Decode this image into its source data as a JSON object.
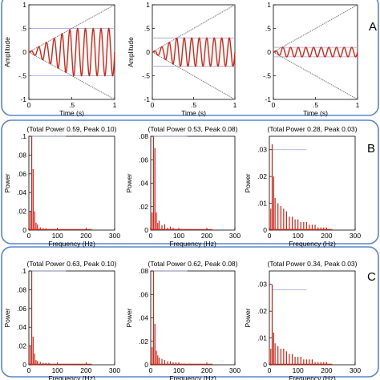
{
  "colors": {
    "signal": "#e02010",
    "envelope": "#777777",
    "reference_line": "#9aa4d8",
    "panel_border": "#5a86c8",
    "axis": "#000000"
  },
  "panels": [
    {
      "label": "A"
    },
    {
      "label": "B"
    },
    {
      "label": "C"
    }
  ],
  "chart_data": [
    {
      "panel": "A",
      "type": "line",
      "xlabel": "Time (s)",
      "ylabel": "Amplitude",
      "xlim": [
        0,
        1
      ],
      "ylim": [
        -1,
        1
      ],
      "xticks": [
        0,
        0.5,
        1
      ],
      "yticks": [
        -1,
        -0.5,
        0,
        0.5,
        1
      ],
      "series": [
        {
          "values_desc": "sinusoidal oscillation, amplitude grows linearly with time up to cap",
          "cap": 0.5,
          "cycles": 11
        },
        {
          "values_desc": "linear envelope",
          "y_at_x0": 0,
          "y_at_x1": 1
        },
        {
          "values_desc": "linear envelope",
          "y_at_x0": 0,
          "y_at_x1": -1
        }
      ],
      "ref_lines": [
        0.5,
        -0.5
      ]
    },
    {
      "panel": "A",
      "type": "line",
      "xlabel": "Time (s)",
      "ylabel": "Amplitude",
      "xlim": [
        0,
        1
      ],
      "ylim": [
        -1,
        1
      ],
      "xticks": [
        0,
        0.5,
        1
      ],
      "yticks": [
        -1,
        -0.5,
        0,
        0.5,
        1
      ],
      "series": [
        {
          "values_desc": "sinusoidal oscillation, amplitude grows linearly with time up to cap",
          "cap": 0.3,
          "cycles": 11
        },
        {
          "values_desc": "linear envelope",
          "y_at_x0": 0,
          "y_at_x1": 1
        },
        {
          "values_desc": "linear envelope",
          "y_at_x0": 0,
          "y_at_x1": -1
        }
      ],
      "ref_lines": [
        0.3,
        -0.3
      ]
    },
    {
      "panel": "A",
      "type": "line",
      "xlabel": "Time (s)",
      "ylabel": "",
      "xlim": [
        0,
        1
      ],
      "ylim": [
        -1,
        1
      ],
      "xticks": [
        0,
        0.5,
        1
      ],
      "yticks": [
        -1,
        -0.5,
        0,
        0.5,
        1
      ],
      "series": [
        {
          "values_desc": "sinusoidal oscillation, amplitude grows linearly with time up to cap",
          "cap": 0.1,
          "cycles": 11
        },
        {
          "values_desc": "linear envelope",
          "y_at_x0": 0,
          "y_at_x1": 1
        },
        {
          "values_desc": "linear envelope",
          "y_at_x0": 0,
          "y_at_x1": -1
        }
      ],
      "ref_lines": [
        0.1,
        -0.1
      ]
    },
    {
      "panel": "B",
      "type": "bar",
      "title": "(Total Power 0.59, Peak 0.10)",
      "xlabel": "Frequency (Hz)",
      "ylabel": "Power",
      "xlim": [
        0,
        300
      ],
      "ylim": [
        0,
        0.1
      ],
      "xticks": [
        0,
        100,
        200,
        300
      ],
      "yticks": [
        0,
        0.02,
        0.04,
        0.06,
        0.08,
        0.1
      ],
      "peak": 0.1,
      "ref_line": 0.1,
      "x": [
        5,
        10,
        15,
        20,
        25,
        30,
        40,
        50,
        60,
        70,
        80,
        90,
        100,
        120
      ],
      "values": [
        0.02,
        0.1,
        0.065,
        0.02,
        0.008,
        0.006,
        0.003,
        0.002,
        0.002,
        0.001,
        0.001,
        0.001,
        0.0005,
        0.0005
      ]
    },
    {
      "panel": "B",
      "type": "bar",
      "title": "(Total Power 0.53, Peak 0.08)",
      "xlabel": "Frequency (Hz)",
      "ylabel": "Power",
      "xlim": [
        0,
        300
      ],
      "ylim": [
        0,
        0.08
      ],
      "xticks": [
        0,
        100,
        200,
        300
      ],
      "yticks": [
        0,
        0.02,
        0.04,
        0.06,
        0.08
      ],
      "peak": 0.08,
      "ref_line": 0.08,
      "x": [
        5,
        10,
        15,
        20,
        25,
        30,
        40,
        50,
        60,
        70,
        80,
        90,
        100,
        110,
        120
      ],
      "values": [
        0.015,
        0.08,
        0.07,
        0.015,
        0.006,
        0.008,
        0.004,
        0.005,
        0.002,
        0.003,
        0.002,
        0.001,
        0.001,
        0.001,
        0.0005
      ]
    },
    {
      "panel": "B",
      "type": "bar",
      "title": "(Total Power 0.28, Peak 0.03)",
      "xlabel": "Frequency (Hz)",
      "ylabel": "Power",
      "xlim": [
        0,
        300
      ],
      "ylim": [
        0,
        0.035
      ],
      "xticks": [
        0,
        100,
        200,
        300
      ],
      "yticks": [
        0,
        0.01,
        0.02,
        0.03
      ],
      "peak": 0.03,
      "ref_line": 0.03,
      "x": [
        5,
        10,
        15,
        20,
        30,
        40,
        50,
        60,
        70,
        80,
        90,
        100,
        110,
        120,
        130,
        140,
        150,
        160,
        170,
        180,
        190,
        200
      ],
      "values": [
        0.008,
        0.032,
        0.02,
        0.012,
        0.01,
        0.009,
        0.008,
        0.007,
        0.005,
        0.005,
        0.004,
        0.004,
        0.003,
        0.003,
        0.003,
        0.002,
        0.002,
        0.002,
        0.001,
        0.001,
        0.001,
        0.001
      ]
    },
    {
      "panel": "C",
      "type": "bar",
      "title": "(Total Power 0.63, Peak 0.10)",
      "xlabel": "Frequency (Hz)",
      "ylabel": "Power",
      "xlim": [
        0,
        300
      ],
      "ylim": [
        0,
        0.1
      ],
      "xticks": [
        0,
        100,
        200,
        300
      ],
      "yticks": [
        0,
        0.02,
        0.04,
        0.06,
        0.08,
        0.1
      ],
      "peak": 0.1,
      "ref_line": 0.1,
      "x": [
        5,
        10,
        15,
        20,
        25,
        30,
        40,
        50,
        60,
        70,
        80,
        90,
        100,
        120
      ],
      "values": [
        0.02,
        0.1,
        0.03,
        0.012,
        0.005,
        0.004,
        0.003,
        0.002,
        0.002,
        0.002,
        0.001,
        0.001,
        0.001,
        0.0005
      ]
    },
    {
      "panel": "C",
      "type": "bar",
      "title": "(Total Power 0.62, Peak 0.08)",
      "xlabel": "Frequency (Hz)",
      "ylabel": "Power",
      "xlim": [
        0,
        300
      ],
      "ylim": [
        0,
        0.08
      ],
      "xticks": [
        0,
        100,
        200,
        300
      ],
      "yticks": [
        0,
        0.02,
        0.04,
        0.06,
        0.08
      ],
      "peak": 0.08,
      "ref_line": 0.08,
      "x": [
        5,
        10,
        15,
        20,
        25,
        30,
        40,
        50,
        60,
        70,
        80,
        90,
        100,
        110,
        120,
        140
      ],
      "values": [
        0.015,
        0.08,
        0.035,
        0.012,
        0.008,
        0.006,
        0.005,
        0.004,
        0.003,
        0.003,
        0.002,
        0.002,
        0.002,
        0.001,
        0.001,
        0.001
      ]
    },
    {
      "panel": "C",
      "type": "bar",
      "title": "(Total Power 0.34, Peak 0.03)",
      "xlabel": "Frequency (Hz)",
      "ylabel": "Power",
      "xlim": [
        0,
        300
      ],
      "ylim": [
        0,
        0.035
      ],
      "xticks": [
        0,
        100,
        200,
        300
      ],
      "yticks": [
        0,
        0.01,
        0.02,
        0.03
      ],
      "peak": 0.03,
      "ref_line": 0.028,
      "x": [
        5,
        10,
        15,
        20,
        30,
        40,
        50,
        60,
        70,
        80,
        90,
        100,
        110,
        120,
        130,
        140,
        150,
        160,
        170,
        180,
        190,
        200
      ],
      "values": [
        0.006,
        0.03,
        0.012,
        0.008,
        0.007,
        0.006,
        0.006,
        0.005,
        0.004,
        0.004,
        0.003,
        0.003,
        0.003,
        0.002,
        0.002,
        0.002,
        0.002,
        0.001,
        0.001,
        0.001,
        0.001,
        0.001
      ]
    }
  ]
}
